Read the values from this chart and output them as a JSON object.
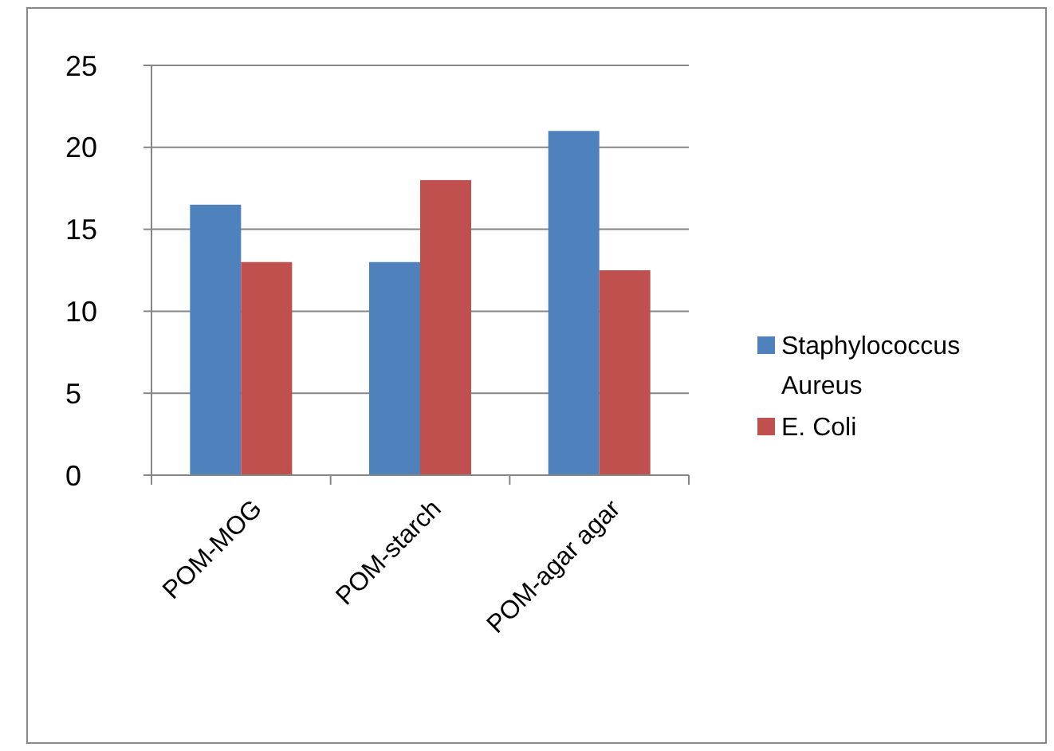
{
  "chart_data": {
    "type": "bar",
    "categories": [
      "POM-MOG",
      "POM-starch",
      "POM-agar agar"
    ],
    "series": [
      {
        "name": "Staphylococcus Aureus",
        "color": "#4f81bd",
        "values": [
          16.5,
          13,
          21
        ]
      },
      {
        "name": "E. Coli",
        "color": "#c0504d",
        "values": [
          13,
          18,
          12.5
        ]
      }
    ],
    "ylim": [
      0,
      25
    ],
    "yticks": [
      0,
      5,
      10,
      15,
      20,
      25
    ],
    "grid": "y",
    "legend": "right"
  }
}
